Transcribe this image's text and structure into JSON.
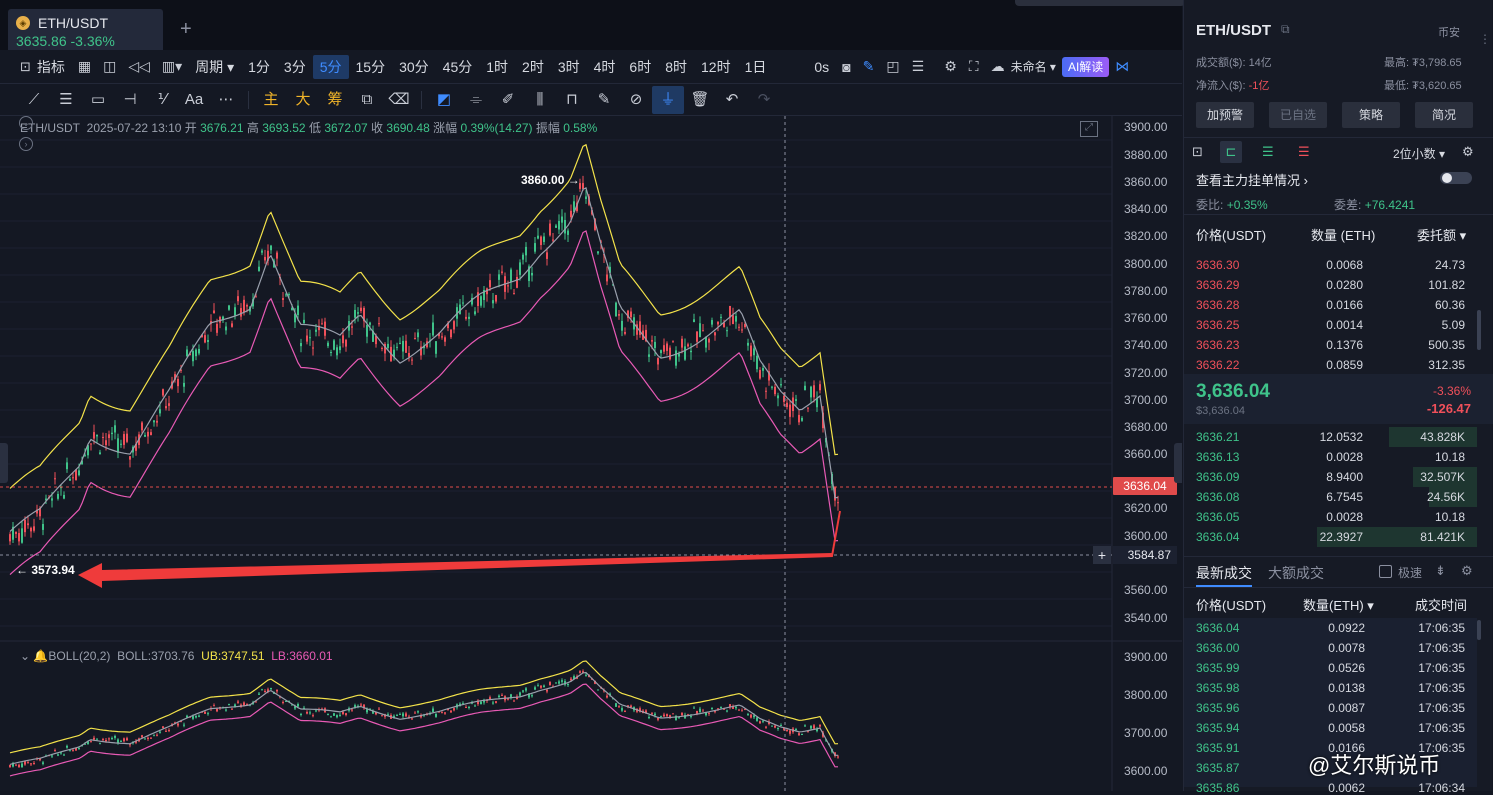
{
  "tab": {
    "symbol": "ETH/USDT",
    "price": "3635.86",
    "change": "-3.36%"
  },
  "toolbar1": {
    "items": [
      "指标",
      "周期",
      "1分",
      "3分",
      "5分",
      "15分",
      "30分",
      "45分",
      "1时",
      "2时",
      "3时",
      "4时",
      "6时",
      "8时",
      "12时",
      "1日",
      "0s",
      "未命名",
      "AI解读"
    ],
    "active": "5分"
  },
  "toolbar2": {
    "labels": [
      "Aa",
      "主",
      "大",
      "筹"
    ]
  },
  "info": {
    "symbol": "ETH/USDT",
    "datetime": "2025-07-22 13:10",
    "open_label": "开",
    "open": "3676.21",
    "high_label": "高",
    "high": "3693.52",
    "low_label": "低",
    "low": "3672.07",
    "close_label": "收",
    "close": "3690.48",
    "chg_label": "涨幅",
    "chg": "0.39%(14.27)",
    "amp_label": "振幅",
    "amp": "0.58%"
  },
  "boll": {
    "label": "BOLL(20,2)",
    "mid": "BOLL:3703.76",
    "ub": "UB:3747.51",
    "lb": "LB:3660.01"
  },
  "price_axis": [
    "3900.00",
    "3880.00",
    "3860.00",
    "3840.00",
    "3820.00",
    "3800.00",
    "3780.00",
    "3760.00",
    "3740.00",
    "3720.00",
    "3700.00",
    "3680.00",
    "3660.00",
    "3620.00",
    "3600.00",
    "3560.00",
    "3540.00"
  ],
  "boll_axis": [
    "3900.00",
    "3800.00",
    "3700.00",
    "3600.00"
  ],
  "current_price_tag": "3636.04",
  "crosshair_price": "3584.87",
  "annotations": {
    "high": "3860.00 →",
    "low": "← 3573.94"
  },
  "right_panel": {
    "symbol": "ETH/USDT",
    "exchange": "币安",
    "volume_label": "成交额($):",
    "volume": "14亿",
    "high_label": "最高:",
    "high": "₮3,798.65",
    "netflow_label": "净流入($):",
    "netflow": "-1亿",
    "low_label": "最低:",
    "low": "₮3,620.65",
    "buttons": [
      "加预警",
      "已自选",
      "策略",
      "简况"
    ],
    "decimals": "2位小数",
    "orders_link": "查看主力挂单情况",
    "ratio_label": "委比:",
    "ratio": "+0.35%",
    "diff_label": "委差:",
    "diff": "+76.4241",
    "ob_headers": [
      "价格(USDT)",
      "数量 (ETH)",
      "委托额"
    ],
    "asks": [
      {
        "p": "3636.30",
        "q": "0.0068",
        "a": "24.73"
      },
      {
        "p": "3636.29",
        "q": "0.0280",
        "a": "101.82"
      },
      {
        "p": "3636.28",
        "q": "0.0166",
        "a": "60.36"
      },
      {
        "p": "3636.25",
        "q": "0.0014",
        "a": "5.09"
      },
      {
        "p": "3636.23",
        "q": "0.1376",
        "a": "500.35"
      },
      {
        "p": "3636.22",
        "q": "0.0859",
        "a": "312.35"
      }
    ],
    "last_price": "3,636.04",
    "last_price_usd": "$3,636.04",
    "last_change_pct": "-3.36%",
    "last_change": "-126.47",
    "bids": [
      {
        "p": "3636.21",
        "q": "12.0532",
        "a": "43.828K",
        "fill": 0.55
      },
      {
        "p": "3636.13",
        "q": "0.0028",
        "a": "10.18",
        "fill": 0
      },
      {
        "p": "3636.09",
        "q": "8.9400",
        "a": "32.507K",
        "fill": 0.4
      },
      {
        "p": "3636.08",
        "q": "6.7545",
        "a": "24.56K",
        "fill": 0.3
      },
      {
        "p": "3636.05",
        "q": "0.0028",
        "a": "10.18",
        "fill": 0
      },
      {
        "p": "3636.04",
        "q": "22.3927",
        "a": "81.421K",
        "fill": 1.0
      }
    ],
    "trades_tabs": [
      "最新成交",
      "大额成交"
    ],
    "fast_label": "极速",
    "trade_headers": [
      "价格(USDT)",
      "数量(ETH)",
      "成交时间"
    ],
    "trades": [
      {
        "p": "3636.04",
        "q": "0.0922",
        "t": "17:06:35"
      },
      {
        "p": "3636.00",
        "q": "0.0078",
        "t": "17:06:35"
      },
      {
        "p": "3635.99",
        "q": "0.0526",
        "t": "17:06:35"
      },
      {
        "p": "3635.98",
        "q": "0.0138",
        "t": "17:06:35"
      },
      {
        "p": "3635.96",
        "q": "0.0087",
        "t": "17:06:35"
      },
      {
        "p": "3635.94",
        "q": "0.0058",
        "t": "17:06:35"
      },
      {
        "p": "3635.91",
        "q": "0.0166",
        "t": "17:06:35"
      },
      {
        "p": "3635.87",
        "q": "",
        "t": ""
      },
      {
        "p": "3635.86",
        "q": "0.0062",
        "t": "17:06:34"
      }
    ]
  },
  "watermark": "@艾尔斯说币",
  "colors": {
    "bg": "#141823",
    "up": "#3fc38a",
    "down": "#f0505a",
    "ub": "#f3e24a",
    "lb": "#e85ab5",
    "mid": "#9aa0ad",
    "accent": "#3f8cff"
  }
}
